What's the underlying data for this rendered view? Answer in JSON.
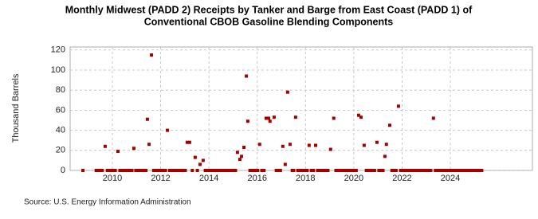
{
  "chart_data": {
    "type": "scatter",
    "title": "Monthly Midwest (PADD 2) Receipts by Tanker and Barge from East Coast (PADD 1) of",
    "subtitle": "Conventional CBOB Gasoline Blending Components",
    "ylabel": "Thousand Barrels",
    "source": "Source: U.S. Energy Information Administration",
    "color": "#a50000",
    "xlim": [
      2008.25,
      2027.4
    ],
    "ylim": [
      0,
      123
    ],
    "xticks": [
      2010,
      2012,
      2014,
      2016,
      2018,
      2020,
      2022,
      2024
    ],
    "yticks": [
      0,
      20,
      40,
      60,
      80,
      100,
      120
    ],
    "grid": true,
    "x": [
      2008.78,
      2009.33,
      2009.42,
      2009.5,
      2009.58,
      2009.7,
      2009.79,
      2009.87,
      2009.96,
      2010.04,
      2010.12,
      2010.23,
      2010.31,
      2010.4,
      2010.48,
      2010.56,
      2010.65,
      2010.73,
      2010.81,
      2010.89,
      2010.97,
      2011.06,
      2011.14,
      2011.23,
      2011.31,
      2011.39,
      2011.45,
      2011.52,
      2011.62,
      2011.71,
      2011.79,
      2011.87,
      2011.96,
      2012.04,
      2012.12,
      2012.2,
      2012.28,
      2012.37,
      2012.45,
      2012.53,
      2012.62,
      2012.7,
      2012.78,
      2012.87,
      2012.95,
      2013.02,
      2013.1,
      2013.2,
      2013.31,
      2013.43,
      2013.52,
      2013.63,
      2013.76,
      2013.85,
      2013.93,
      2014.02,
      2014.1,
      2014.18,
      2014.27,
      2014.35,
      2014.43,
      2014.52,
      2014.6,
      2014.68,
      2014.77,
      2014.85,
      2014.93,
      2015.02,
      2015.1,
      2015.18,
      2015.28,
      2015.35,
      2015.45,
      2015.55,
      2015.61,
      2015.7,
      2015.78,
      2015.87,
      2015.95,
      2016.02,
      2016.1,
      2016.19,
      2016.28,
      2016.37,
      2016.47,
      2016.53,
      2016.7,
      2016.79,
      2016.87,
      2016.96,
      2017.06,
      2017.16,
      2017.26,
      2017.36,
      2017.45,
      2017.51,
      2017.59,
      2017.68,
      2017.76,
      2017.84,
      2017.93,
      2018.01,
      2018.07,
      2018.15,
      2018.24,
      2018.33,
      2018.42,
      2018.5,
      2018.59,
      2018.67,
      2018.76,
      2018.84,
      2018.93,
      2019.04,
      2019.17,
      2019.26,
      2019.34,
      2019.43,
      2019.51,
      2019.59,
      2019.68,
      2019.76,
      2019.84,
      2019.93,
      2020.01,
      2020.1,
      2020.2,
      2020.3,
      2020.43,
      2020.52,
      2020.6,
      2020.69,
      2020.77,
      2020.86,
      2020.96,
      2021.04,
      2021.13,
      2021.21,
      2021.29,
      2021.35,
      2021.49,
      2021.58,
      2021.67,
      2021.75,
      2021.85,
      2021.94,
      2022.02,
      2022.1,
      2022.19,
      2022.27,
      2022.35,
      2022.44,
      2022.52,
      2022.6,
      2022.69,
      2022.77,
      2022.85,
      2022.94,
      2023.02,
      2023.1,
      2023.19,
      2023.3,
      2023.38,
      2023.46,
      2023.55,
      2023.63,
      2023.71,
      2023.8,
      2023.88,
      2023.96,
      2024.05,
      2024.13,
      2024.21,
      2024.3,
      2024.38,
      2024.46,
      2024.55,
      2024.63,
      2024.71,
      2024.8,
      2024.88,
      2024.96,
      2025.05,
      2025.13,
      2025.21,
      2025.3
    ],
    "values": [
      0,
      0,
      0,
      0,
      0,
      24,
      0,
      0,
      0,
      0,
      0,
      19,
      0,
      0,
      0,
      0,
      0,
      0,
      0,
      22,
      0,
      0,
      0,
      0,
      0,
      0,
      51,
      26,
      115,
      0,
      0,
      0,
      0,
      0,
      0,
      0,
      40,
      0,
      0,
      0,
      0,
      0,
      0,
      0,
      0,
      0,
      28,
      28,
      0,
      13,
      0,
      6,
      10,
      0,
      0,
      0,
      0,
      0,
      0,
      0,
      0,
      0,
      0,
      0,
      0,
      0,
      0,
      0,
      0,
      18,
      11,
      14,
      23,
      94,
      49,
      0,
      0,
      0,
      0,
      0,
      26,
      0,
      0,
      52,
      52,
      49,
      53,
      0,
      0,
      0,
      24,
      6,
      78,
      26,
      0,
      0,
      53,
      0,
      0,
      0,
      0,
      0,
      0,
      25,
      0,
      0,
      25,
      0,
      0,
      0,
      0,
      0,
      0,
      21,
      52,
      0,
      0,
      0,
      0,
      0,
      0,
      0,
      0,
      0,
      0,
      0,
      55,
      53,
      25,
      0,
      0,
      0,
      0,
      0,
      28,
      0,
      0,
      0,
      14,
      26,
      45,
      0,
      0,
      0,
      64,
      0,
      0,
      0,
      0,
      0,
      0,
      0,
      0,
      0,
      0,
      0,
      0,
      0,
      0,
      0,
      0,
      52,
      0,
      0,
      0,
      0,
      0,
      0,
      0,
      0,
      0,
      0,
      0,
      0,
      0,
      0,
      0,
      0,
      0,
      0,
      0,
      0,
      0,
      0,
      0,
      0
    ]
  }
}
